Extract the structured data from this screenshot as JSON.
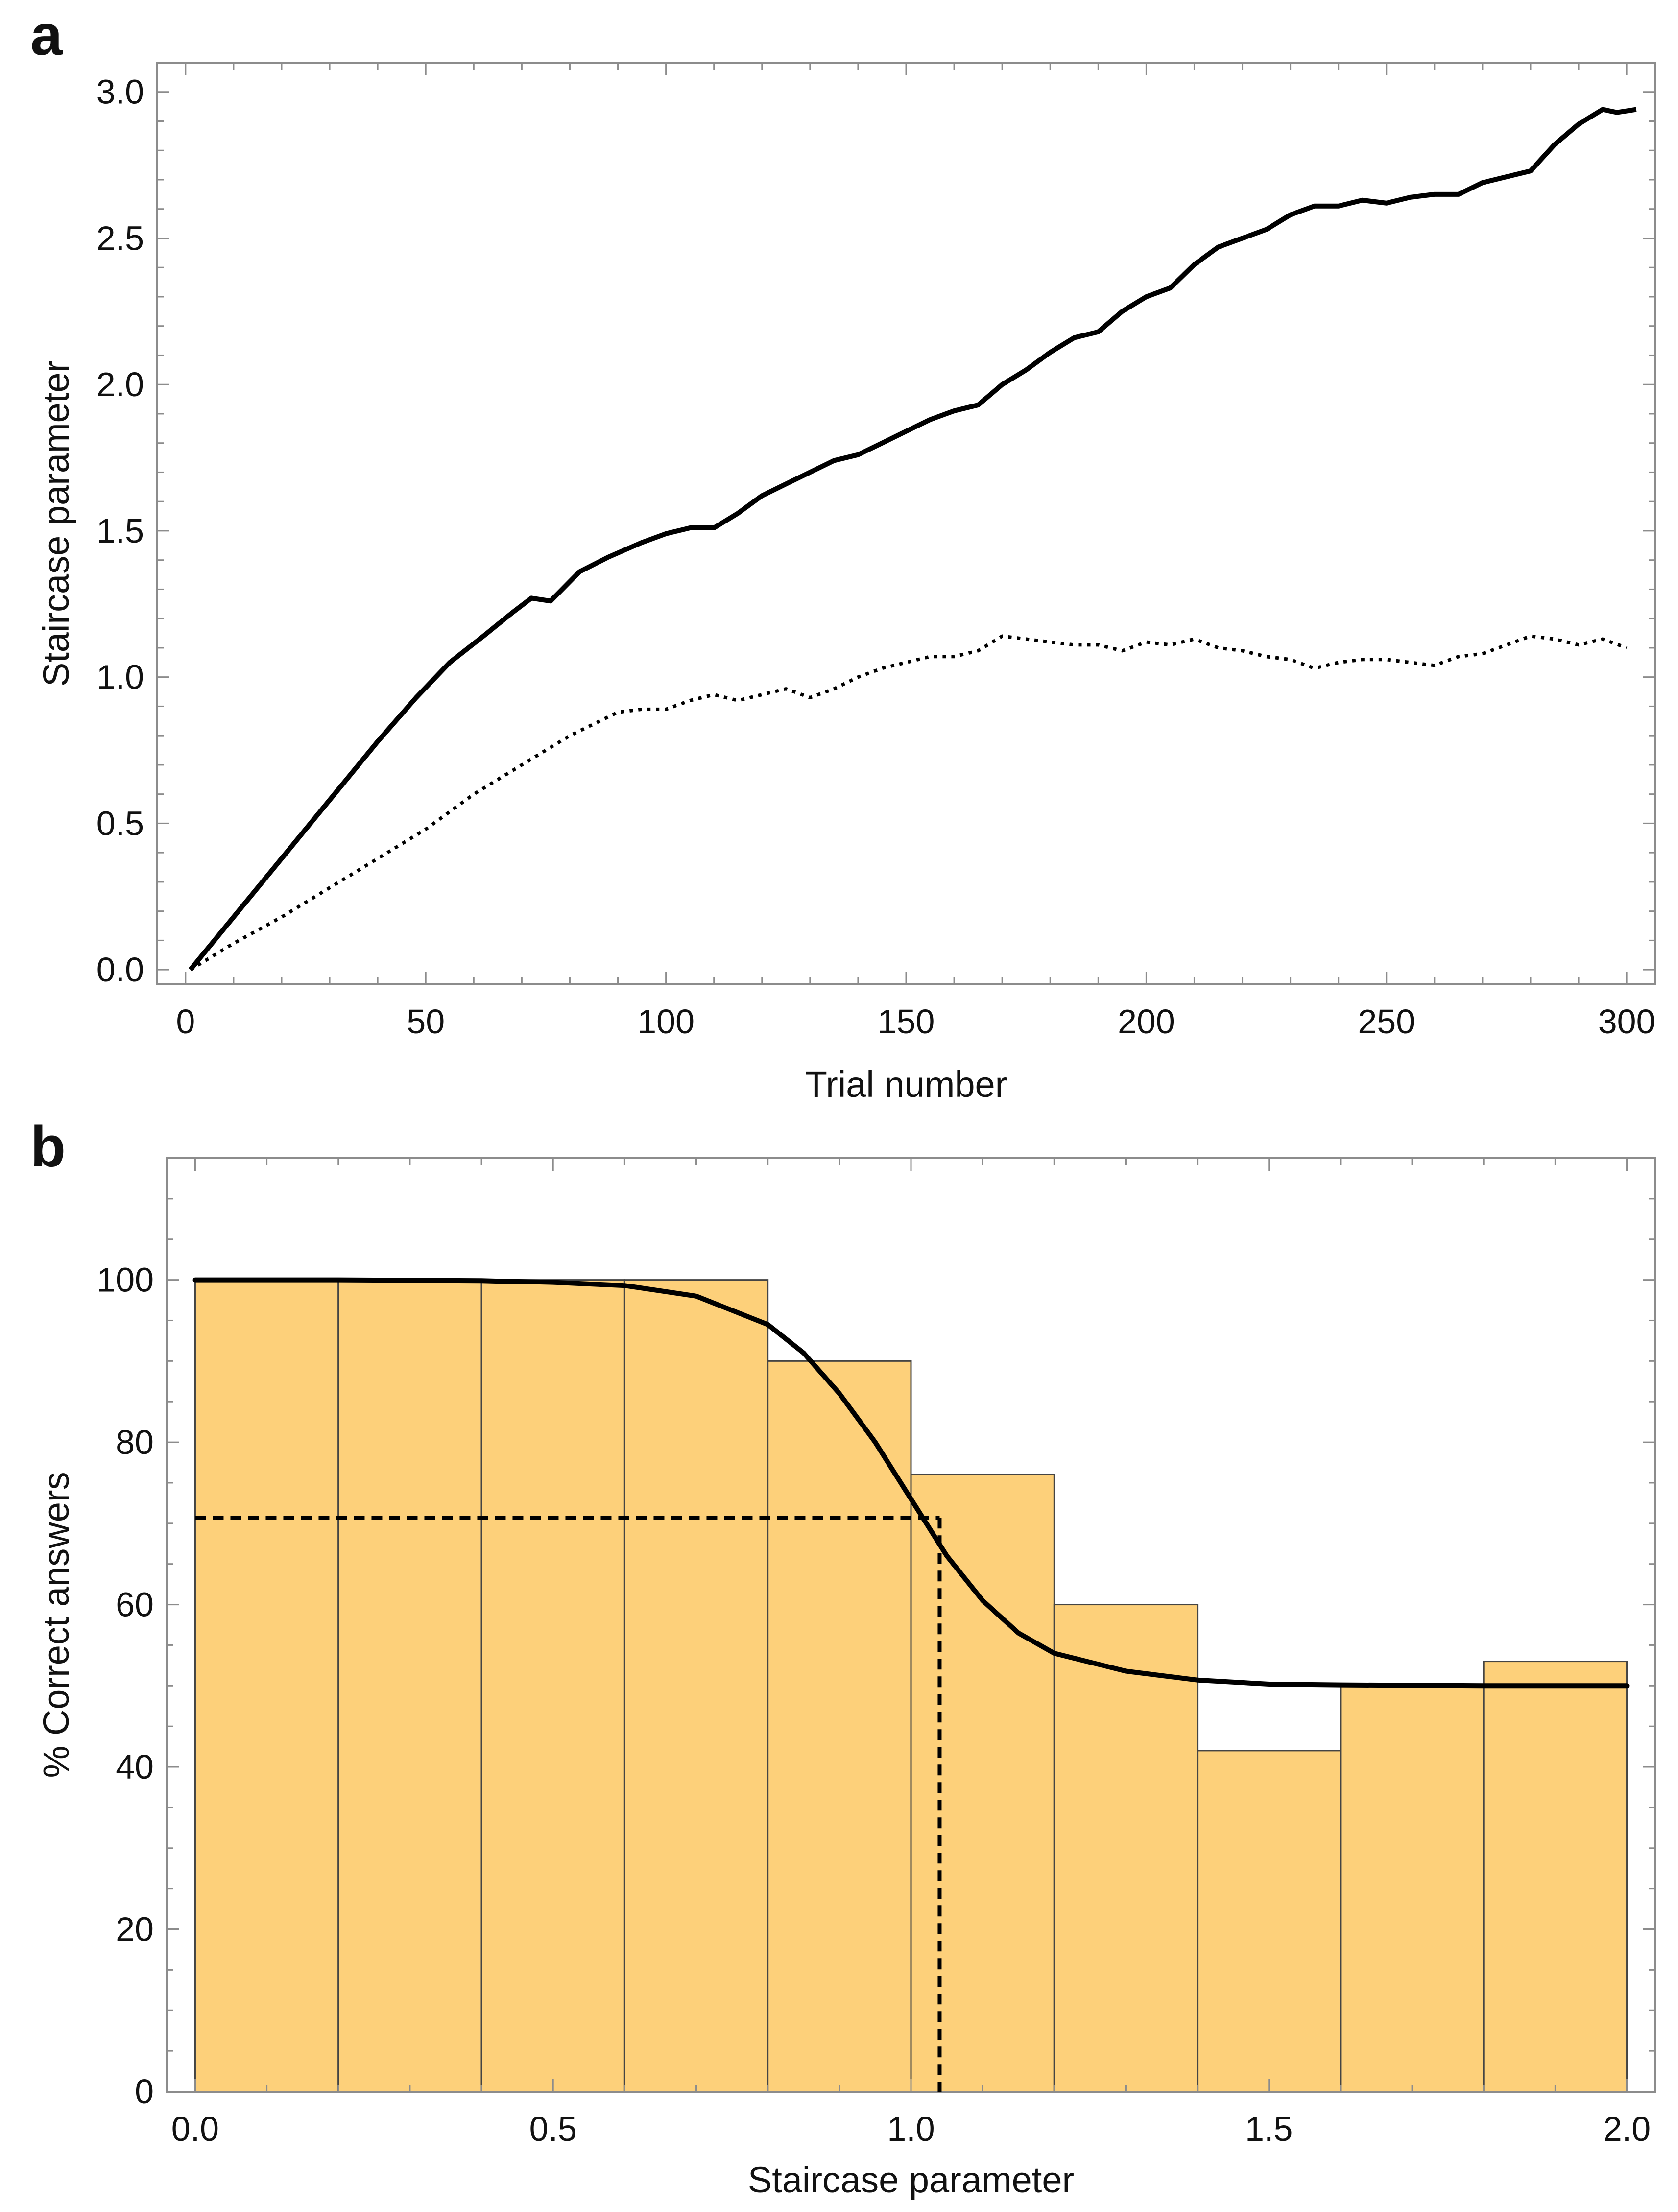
{
  "figure": {
    "panel_a_letter": "a",
    "panel_b_letter": "b"
  },
  "chart_data": [
    {
      "panel": "a",
      "type": "line",
      "xlabel": "Trial number",
      "ylabel": "Staircase parameter",
      "xlim": [
        -6,
        306
      ],
      "ylim": [
        -0.05,
        3.1
      ],
      "xticks": [
        0,
        50,
        100,
        150,
        200,
        250,
        300
      ],
      "xtick_labels": [
        "0",
        "50",
        "100",
        "150",
        "200",
        "250",
        "300"
      ],
      "yticks": [
        0.0,
        0.5,
        1.0,
        1.5,
        2.0,
        2.5,
        3.0
      ],
      "ytick_labels": [
        "0.0",
        "0.5",
        "1.0",
        "1.5",
        "2.0",
        "2.5",
        "3.0"
      ],
      "series": [
        {
          "name": "solid",
          "style": "solid",
          "color": "#000000",
          "x": [
            1,
            10,
            20,
            30,
            40,
            48,
            55,
            62,
            68,
            72,
            76,
            82,
            88,
            95,
            100,
            105,
            110,
            115,
            120,
            125,
            130,
            135,
            140,
            145,
            150,
            155,
            160,
            165,
            170,
            175,
            180,
            185,
            190,
            195,
            200,
            205,
            210,
            215,
            220,
            225,
            230,
            235,
            240,
            245,
            250,
            255,
            260,
            265,
            270,
            275,
            280,
            285,
            290,
            295,
            298,
            302
          ],
          "y": [
            0.0,
            0.18,
            0.38,
            0.58,
            0.78,
            0.93,
            1.05,
            1.14,
            1.22,
            1.27,
            1.26,
            1.36,
            1.41,
            1.46,
            1.49,
            1.51,
            1.51,
            1.56,
            1.62,
            1.66,
            1.7,
            1.74,
            1.76,
            1.8,
            1.84,
            1.88,
            1.91,
            1.93,
            2.0,
            2.05,
            2.11,
            2.16,
            2.18,
            2.25,
            2.3,
            2.33,
            2.41,
            2.47,
            2.5,
            2.53,
            2.58,
            2.61,
            2.61,
            2.63,
            2.62,
            2.64,
            2.65,
            2.65,
            2.69,
            2.71,
            2.73,
            2.82,
            2.89,
            2.94,
            2.93,
            2.94
          ]
        },
        {
          "name": "dotted",
          "style": "dotted",
          "color": "#000000",
          "x": [
            1,
            10,
            20,
            30,
            40,
            50,
            60,
            70,
            80,
            90,
            95,
            100,
            105,
            110,
            115,
            120,
            125,
            130,
            135,
            140,
            145,
            150,
            155,
            160,
            165,
            170,
            175,
            180,
            185,
            190,
            195,
            200,
            205,
            210,
            215,
            220,
            225,
            230,
            235,
            240,
            245,
            250,
            255,
            260,
            265,
            270,
            275,
            280,
            285,
            290,
            295,
            300
          ],
          "y": [
            0.0,
            0.09,
            0.18,
            0.28,
            0.38,
            0.48,
            0.6,
            0.7,
            0.8,
            0.88,
            0.89,
            0.89,
            0.92,
            0.94,
            0.92,
            0.94,
            0.96,
            0.93,
            0.96,
            1.0,
            1.03,
            1.05,
            1.07,
            1.07,
            1.09,
            1.14,
            1.13,
            1.12,
            1.11,
            1.11,
            1.09,
            1.12,
            1.11,
            1.13,
            1.1,
            1.09,
            1.07,
            1.06,
            1.03,
            1.05,
            1.06,
            1.06,
            1.05,
            1.04,
            1.07,
            1.08,
            1.11,
            1.14,
            1.13,
            1.11,
            1.13,
            1.1
          ]
        }
      ]
    },
    {
      "panel": "b",
      "type": "bar",
      "xlabel": "Staircase parameter",
      "ylabel": "% Correct answers",
      "xlim": [
        -0.04,
        2.04
      ],
      "ylim": [
        0,
        115
      ],
      "xticks": [
        0.0,
        0.5,
        1.0,
        1.5,
        2.0
      ],
      "xtick_labels": [
        "0.0",
        "0.5",
        "1.0",
        "1.5",
        "2.0"
      ],
      "yticks": [
        0,
        20,
        40,
        60,
        80,
        100
      ],
      "ytick_labels": [
        "0",
        "20",
        "40",
        "60",
        "80",
        "100"
      ],
      "bar_color": "#fdd07a",
      "bins": [
        [
          0.0,
          0.2
        ],
        [
          0.2,
          0.4
        ],
        [
          0.4,
          0.6
        ],
        [
          0.6,
          0.8
        ],
        [
          0.8,
          1.0
        ],
        [
          1.0,
          1.2
        ],
        [
          1.2,
          1.4
        ],
        [
          1.4,
          1.6
        ],
        [
          1.6,
          1.8
        ],
        [
          1.8,
          2.0
        ]
      ],
      "values": [
        100,
        100,
        100,
        100,
        90,
        76,
        60,
        42,
        50,
        53
      ],
      "fit_curve": {
        "name": "psychometric fit",
        "style": "solid",
        "color": "#000000",
        "x": [
          0.0,
          0.2,
          0.4,
          0.5,
          0.6,
          0.7,
          0.8,
          0.85,
          0.9,
          0.95,
          1.0,
          1.05,
          1.1,
          1.15,
          1.2,
          1.3,
          1.4,
          1.5,
          1.6,
          1.8,
          2.0
        ],
        "y": [
          100,
          100,
          99.9,
          99.7,
          99.3,
          98.0,
          94.5,
          91.0,
          86.0,
          80.0,
          73.0,
          66.0,
          60.5,
          56.5,
          54.0,
          51.8,
          50.7,
          50.2,
          50.1,
          50.0,
          50.0
        ]
      },
      "threshold": {
        "style": "dashed",
        "x": 1.04,
        "y": 70.7
      }
    }
  ]
}
